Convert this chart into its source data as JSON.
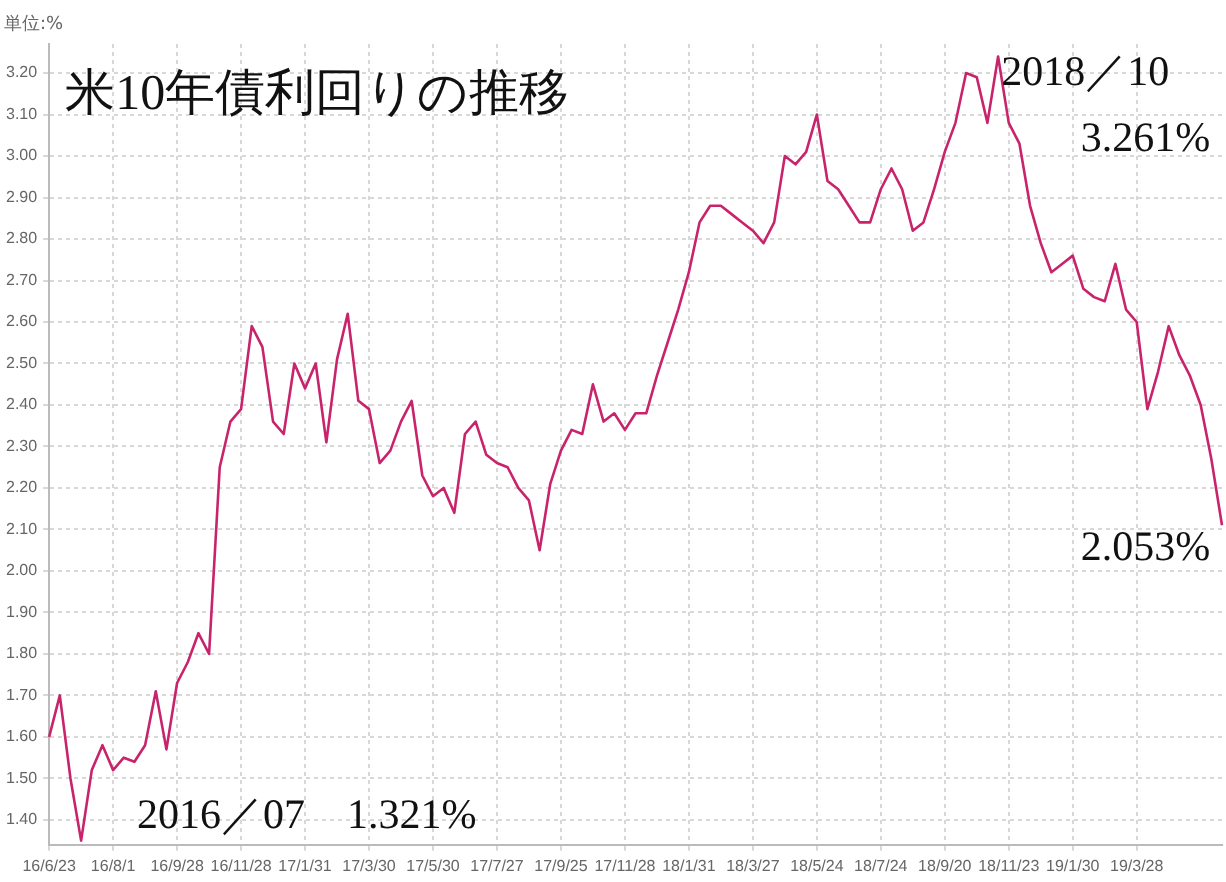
{
  "chart_data": {
    "type": "line",
    "title": "米10年債利回りの推移",
    "ylabel": "単位:%",
    "categories": [
      "16/6/23",
      null,
      null,
      null,
      null,
      null,
      "16/8/1",
      null,
      null,
      null,
      null,
      null,
      "16/9/28",
      null,
      null,
      null,
      null,
      null,
      "16/11/28",
      null,
      null,
      null,
      null,
      null,
      "17/1/31",
      null,
      null,
      null,
      null,
      null,
      "17/3/30",
      null,
      null,
      null,
      null,
      null,
      "17/5/30",
      null,
      null,
      null,
      null,
      null,
      "17/7/27",
      null,
      null,
      null,
      null,
      null,
      "17/9/25",
      null,
      null,
      null,
      null,
      null,
      "17/11/28",
      null,
      null,
      null,
      null,
      null,
      "18/1/31",
      null,
      null,
      null,
      null,
      null,
      "18/3/27",
      null,
      null,
      null,
      null,
      null,
      "18/5/24",
      null,
      null,
      null,
      null,
      null,
      "18/7/24",
      null,
      null,
      null,
      null,
      null,
      "18/9/20",
      null,
      null,
      null,
      null,
      null,
      "18/11/23",
      null,
      null,
      null,
      null,
      null,
      "19/1/30",
      null,
      null,
      null,
      null,
      null,
      "19/3/28",
      null,
      null,
      null,
      null,
      null,
      null,
      null,
      null
    ],
    "series": [
      {
        "color": "#c8246c",
        "values": [
          1.6,
          1.7,
          1.5,
          1.35,
          1.52,
          1.58,
          1.52,
          1.55,
          1.54,
          1.58,
          1.71,
          1.57,
          1.73,
          1.78,
          1.85,
          1.8,
          2.25,
          2.36,
          2.39,
          2.59,
          2.54,
          2.36,
          2.33,
          2.5,
          2.44,
          2.5,
          2.31,
          2.51,
          2.62,
          2.41,
          2.39,
          2.26,
          2.29,
          2.36,
          2.41,
          2.23,
          2.18,
          2.2,
          2.14,
          2.33,
          2.36,
          2.28,
          2.26,
          2.25,
          2.2,
          2.17,
          2.05,
          2.21,
          2.29,
          2.34,
          2.33,
          2.45,
          2.36,
          2.38,
          2.34,
          2.38,
          2.38,
          2.47,
          2.55,
          2.63,
          2.72,
          2.84,
          2.88,
          2.88,
          2.86,
          2.84,
          2.82,
          2.79,
          2.84,
          3.0,
          2.98,
          3.01,
          3.1,
          2.94,
          2.92,
          2.88,
          2.84,
          2.84,
          2.92,
          2.97,
          2.92,
          2.82,
          2.84,
          2.92,
          3.01,
          3.08,
          3.2,
          3.19,
          3.08,
          3.24,
          3.08,
          3.03,
          2.88,
          2.79,
          2.72,
          2.74,
          2.76,
          2.68,
          2.66,
          2.65,
          2.74,
          2.63,
          2.6,
          2.39,
          2.48,
          2.59,
          2.52,
          2.47,
          2.4,
          2.27,
          2.11
        ]
      }
    ],
    "ylim": [
      1.34,
      3.27
    ],
    "yticks": [
      {
        "value": 1.4,
        "label": "1.40"
      },
      {
        "value": 1.5,
        "label": "1.50"
      },
      {
        "value": 1.6,
        "label": "1.60"
      },
      {
        "value": 1.7,
        "label": "1.70"
      },
      {
        "value": 1.8,
        "label": "1.80"
      },
      {
        "value": 1.9,
        "label": "1.90"
      },
      {
        "value": 2.0,
        "label": "2.00"
      },
      {
        "value": 2.1,
        "label": "2.10"
      },
      {
        "value": 2.2,
        "label": "2.20"
      },
      {
        "value": 2.3,
        "label": "2.30"
      },
      {
        "value": 2.4,
        "label": "2.40"
      },
      {
        "value": 2.5,
        "label": "2.50"
      },
      {
        "value": 2.6,
        "label": "2.60"
      },
      {
        "value": 2.7,
        "label": "2.70"
      },
      {
        "value": 2.8,
        "label": "2.80"
      },
      {
        "value": 2.9,
        "label": "2.90"
      },
      {
        "value": 3.0,
        "label": "3.00"
      },
      {
        "value": 3.1,
        "label": "3.10"
      },
      {
        "value": 3.2,
        "label": "3.20"
      }
    ],
    "annotations": [
      "2018／10",
      "3.261%",
      "2.053%",
      "2016／07　1.321%"
    ],
    "grid": true,
    "legend": false,
    "marker": "none",
    "line_style": "solid"
  }
}
